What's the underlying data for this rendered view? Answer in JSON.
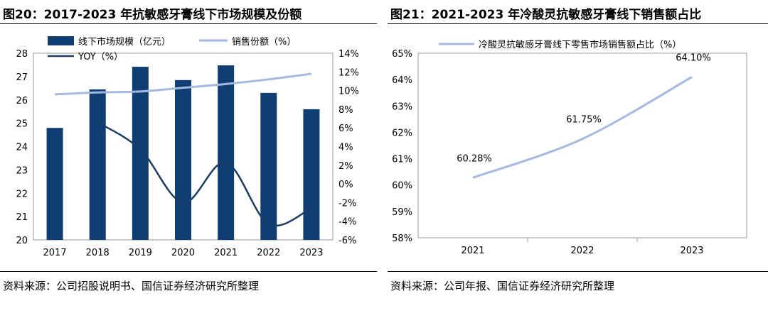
{
  "figures": [
    {
      "title": "图20：2017-2023 年抗敏感牙膏线下市场规模及份额",
      "source": "资料来源：公司招股说明书、国信证券经济研究所整理"
    },
    {
      "title": "图21：2021-2023 年冷酸灵抗敏感牙膏线下销售额占比",
      "source": "资料来源：公司年报、国信证券经济研究所整理"
    }
  ],
  "colors": {
    "bar": "#0f3e73",
    "share_line": "#a3b8e3",
    "yoy_line": "#1a3d66"
  },
  "chart_data": [
    {
      "type": "bar",
      "categories": [
        "2017",
        "2018",
        "2019",
        "2020",
        "2021",
        "2022",
        "2023"
      ],
      "ylim_left": [
        20,
        28
      ],
      "yticks_left": [
        "20",
        "21",
        "22",
        "23",
        "24",
        "25",
        "26",
        "27",
        "28"
      ],
      "ylim_right": [
        -6,
        14
      ],
      "yticks_right": [
        "-6%",
        "-4%",
        "-2%",
        "0%",
        "2%",
        "4%",
        "6%",
        "8%",
        "10%",
        "12%",
        "14%"
      ],
      "legend_position": "top-left",
      "series": [
        {
          "name": "线下市场规模（亿元）",
          "type": "bar",
          "axis": "left",
          "values": [
            24.8,
            26.45,
            27.42,
            26.85,
            27.48,
            26.3,
            25.6
          ]
        },
        {
          "name": "销售份额（%）",
          "type": "line",
          "axis": "right",
          "values": [
            9.6,
            9.8,
            9.9,
            10.3,
            10.7,
            11.2,
            11.8
          ]
        },
        {
          "name": "YOY（%）",
          "type": "line",
          "axis": "right",
          "smooth": true,
          "values": [
            null,
            6.6,
            3.7,
            -2.0,
            2.3,
            -4.3,
            -2.6
          ]
        }
      ]
    },
    {
      "type": "line",
      "categories": [
        "2021",
        "2022",
        "2023"
      ],
      "ylim": [
        58,
        65
      ],
      "yticks": [
        "58%",
        "59%",
        "60%",
        "61%",
        "62%",
        "63%",
        "64%",
        "65%"
      ],
      "legend_position": "top",
      "series": [
        {
          "name": "冷酸灵抗敏感牙膏线下零售市场销售额占比（%）",
          "values": [
            60.28,
            61.75,
            64.1
          ],
          "data_labels": [
            "60.28%",
            "61.75%",
            "64.10%"
          ]
        }
      ]
    }
  ]
}
